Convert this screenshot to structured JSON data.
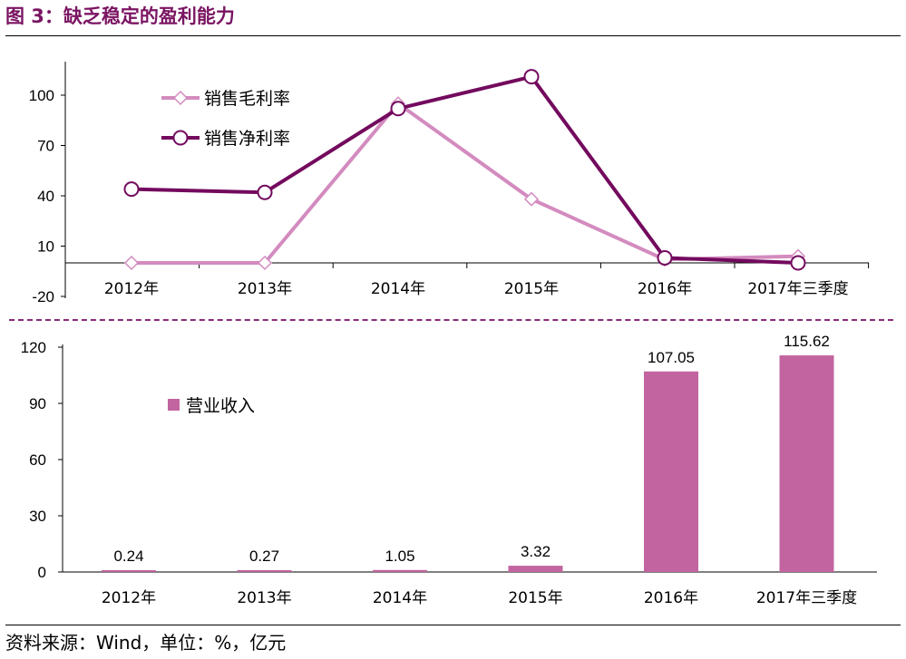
{
  "figure": {
    "title": "图 3：缺乏稳定的盈利能力",
    "source": "资料来源：Wind，单位：%，亿元"
  },
  "colors": {
    "gross_margin": "#d38bbf",
    "net_margin": "#730a5e",
    "revenue_bar": "#c2649f",
    "divider": "#8a2a78"
  },
  "chart_data": [
    {
      "type": "line",
      "categories": [
        "2012年",
        "2013年",
        "2014年",
        "2015年",
        "2016年",
        "2017年三季度"
      ],
      "y_ticks": [
        -20,
        10,
        40,
        70,
        100
      ],
      "ylim": [
        -20,
        120
      ],
      "legend_position": "top-left",
      "series": [
        {
          "name": "销售毛利率",
          "color": "#d38bbf",
          "marker": "diamond",
          "values": [
            0,
            0,
            95,
            38,
            2,
            4
          ]
        },
        {
          "name": "销售净利率",
          "color": "#730a5e",
          "marker": "circle",
          "values": [
            44,
            42,
            92,
            111,
            3,
            0
          ]
        }
      ]
    },
    {
      "type": "bar",
      "categories": [
        "2012年",
        "2013年",
        "2014年",
        "2015年",
        "2016年",
        "2017年三季度"
      ],
      "y_ticks": [
        0,
        30,
        60,
        90,
        120
      ],
      "ylim": [
        0,
        120
      ],
      "legend_position": "top-left",
      "series": [
        {
          "name": "营业收入",
          "color": "#c2649f",
          "values": [
            0.24,
            0.27,
            1.05,
            3.32,
            107.05,
            115.62
          ]
        }
      ],
      "data_labels": [
        "0.24",
        "0.27",
        "1.05",
        "3.32",
        "107.05",
        "115.62"
      ]
    }
  ]
}
